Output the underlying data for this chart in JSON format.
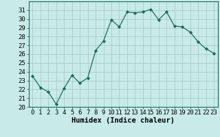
{
  "x": [
    0,
    1,
    2,
    3,
    4,
    5,
    6,
    7,
    8,
    9,
    10,
    11,
    12,
    13,
    14,
    15,
    16,
    17,
    18,
    19,
    20,
    21,
    22,
    23
  ],
  "y": [
    23.5,
    22.2,
    21.7,
    20.3,
    22.1,
    23.6,
    22.7,
    23.3,
    26.4,
    27.5,
    29.9,
    29.1,
    30.8,
    30.7,
    30.8,
    31.1,
    29.9,
    30.8,
    29.2,
    29.1,
    28.5,
    27.4,
    26.6,
    26.1
  ],
  "line_color": "#1a6b5a",
  "marker": "D",
  "marker_size": 2.2,
  "bg_color": "#c8eae8",
  "grid_color": "#a8ccc8",
  "xlabel": "Humidex (Indice chaleur)",
  "ylim": [
    20,
    32
  ],
  "yticks": [
    20,
    21,
    22,
    23,
    24,
    25,
    26,
    27,
    28,
    29,
    30,
    31
  ],
  "xlim": [
    -0.5,
    23.5
  ],
  "xticks": [
    0,
    1,
    2,
    3,
    4,
    5,
    6,
    7,
    8,
    9,
    10,
    11,
    12,
    13,
    14,
    15,
    16,
    17,
    18,
    19,
    20,
    21,
    22,
    23
  ],
  "label_fontsize": 7.5,
  "tick_fontsize": 6.5
}
